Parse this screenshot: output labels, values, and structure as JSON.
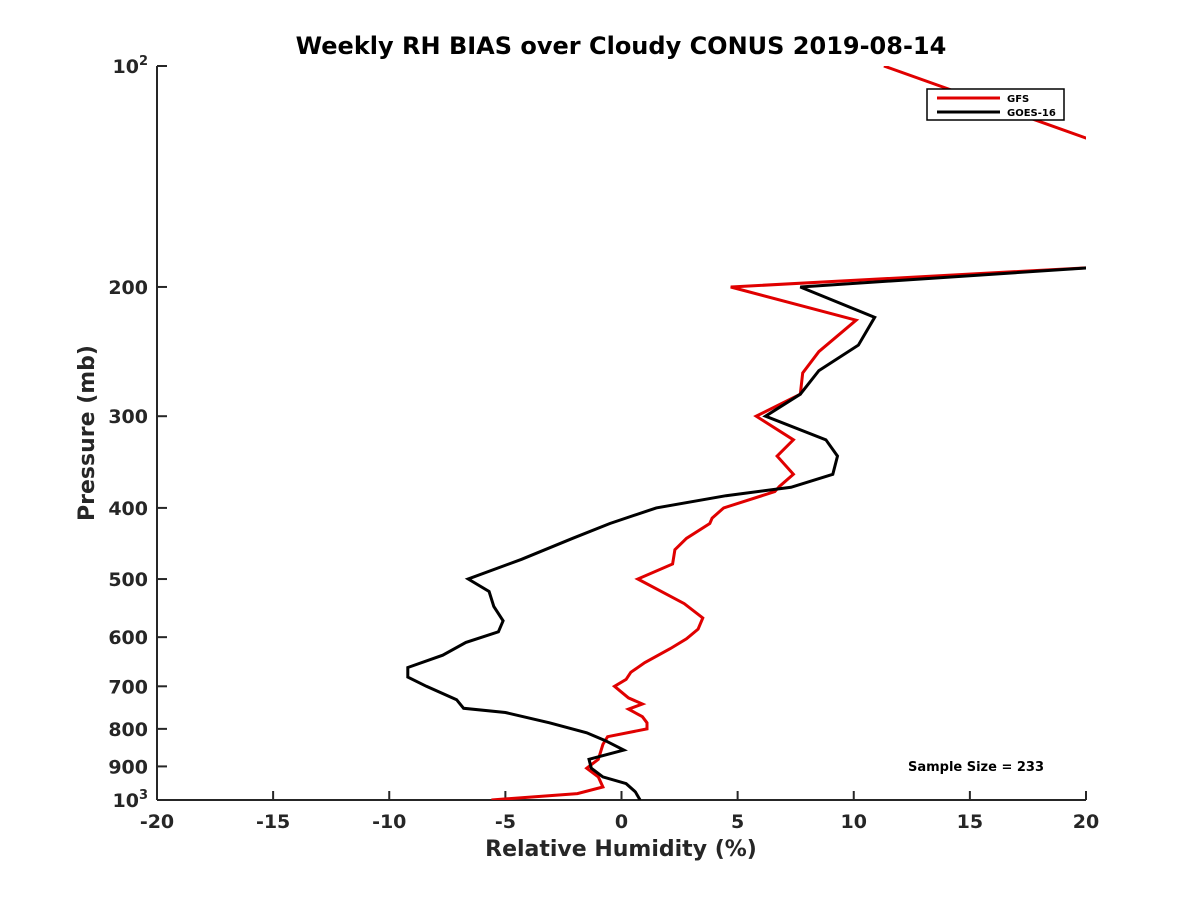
{
  "chart_data": {
    "type": "line",
    "title": "Weekly RH BIAS over Cloudy CONUS 2019-08-14",
    "xlabel": "Relative Humidity (%)",
    "ylabel": "Pressure (mb)",
    "xlim": [
      -20,
      20
    ],
    "ylim": [
      100,
      1000
    ],
    "y_scale": "log",
    "y_reversed": true,
    "grid": false,
    "legend_position": "top-right",
    "x_ticks": [
      "-20",
      "-15",
      "-10",
      "-5",
      "0",
      "5",
      "10",
      "15",
      "20"
    ],
    "y_ticks": [
      {
        "value": 100,
        "base": "10",
        "exp": "2"
      },
      {
        "value": 200,
        "label": "200"
      },
      {
        "value": 300,
        "label": "300"
      },
      {
        "value": 400,
        "label": "400"
      },
      {
        "value": 500,
        "label": "500"
      },
      {
        "value": 600,
        "label": "600"
      },
      {
        "value": 700,
        "label": "700"
      },
      {
        "value": 800,
        "label": "800"
      },
      {
        "value": 900,
        "label": "900"
      },
      {
        "value": 1000,
        "base": "10",
        "exp": "3"
      }
    ],
    "annotation": "Sample Size = 233",
    "series": [
      {
        "name": "GFS",
        "color": "#e00000",
        "points": [
          [
            11.3,
            100
          ],
          [
            20.5,
            127
          ],
          [
            20.5,
            188
          ],
          [
            4.7,
            200
          ],
          [
            10.1,
            222
          ],
          [
            8.5,
            245
          ],
          [
            7.8,
            262
          ],
          [
            7.7,
            280
          ],
          [
            5.8,
            300
          ],
          [
            7.4,
            323
          ],
          [
            6.7,
            340
          ],
          [
            7.4,
            360
          ],
          [
            6.8,
            374
          ],
          [
            6.6,
            380
          ],
          [
            4.4,
            400
          ],
          [
            3.9,
            413
          ],
          [
            3.8,
            420
          ],
          [
            2.8,
            440
          ],
          [
            2.3,
            456
          ],
          [
            2.2,
            477
          ],
          [
            0.7,
            500
          ],
          [
            2.7,
            540
          ],
          [
            3.5,
            565
          ],
          [
            3.3,
            585
          ],
          [
            2.8,
            603
          ],
          [
            2.1,
            622
          ],
          [
            1.0,
            650
          ],
          [
            0.4,
            670
          ],
          [
            0.2,
            685
          ],
          [
            -0.3,
            700
          ],
          [
            0.3,
            726
          ],
          [
            0.9,
            740
          ],
          [
            0.3,
            752
          ],
          [
            0.9,
            770
          ],
          [
            1.1,
            785
          ],
          [
            1.1,
            800
          ],
          [
            -0.6,
            820
          ],
          [
            -0.8,
            840
          ],
          [
            -0.9,
            860
          ],
          [
            -1.0,
            880
          ],
          [
            -1.5,
            905
          ],
          [
            -1.0,
            930
          ],
          [
            -0.8,
            960
          ],
          [
            -1.9,
            980
          ],
          [
            -5.6,
            1000
          ]
        ]
      },
      {
        "name": "GOES-16",
        "color": "#000000",
        "points": [
          [
            20.5,
            188
          ],
          [
            7.7,
            200
          ],
          [
            10.9,
            220
          ],
          [
            10.2,
            240
          ],
          [
            8.5,
            260
          ],
          [
            7.7,
            280
          ],
          [
            6.2,
            300
          ],
          [
            8.8,
            323
          ],
          [
            9.3,
            340
          ],
          [
            9.1,
            360
          ],
          [
            7.3,
            375
          ],
          [
            4.5,
            385
          ],
          [
            1.5,
            400
          ],
          [
            -0.5,
            420
          ],
          [
            -2.1,
            440
          ],
          [
            -4.3,
            470
          ],
          [
            -6.6,
            500
          ],
          [
            -5.7,
            520
          ],
          [
            -5.5,
            545
          ],
          [
            -5.1,
            570
          ],
          [
            -5.3,
            590
          ],
          [
            -6.7,
            610
          ],
          [
            -7.7,
            635
          ],
          [
            -9.2,
            660
          ],
          [
            -9.2,
            680
          ],
          [
            -8.4,
            700
          ],
          [
            -7.1,
            730
          ],
          [
            -6.8,
            750
          ],
          [
            -5.0,
            760
          ],
          [
            -3.1,
            785
          ],
          [
            -1.5,
            810
          ],
          [
            -0.7,
            830
          ],
          [
            0.1,
            855
          ],
          [
            -1.4,
            880
          ],
          [
            -1.3,
            905
          ],
          [
            -0.8,
            930
          ],
          [
            0.2,
            950
          ],
          [
            0.6,
            975
          ],
          [
            0.8,
            1000
          ]
        ]
      }
    ]
  }
}
